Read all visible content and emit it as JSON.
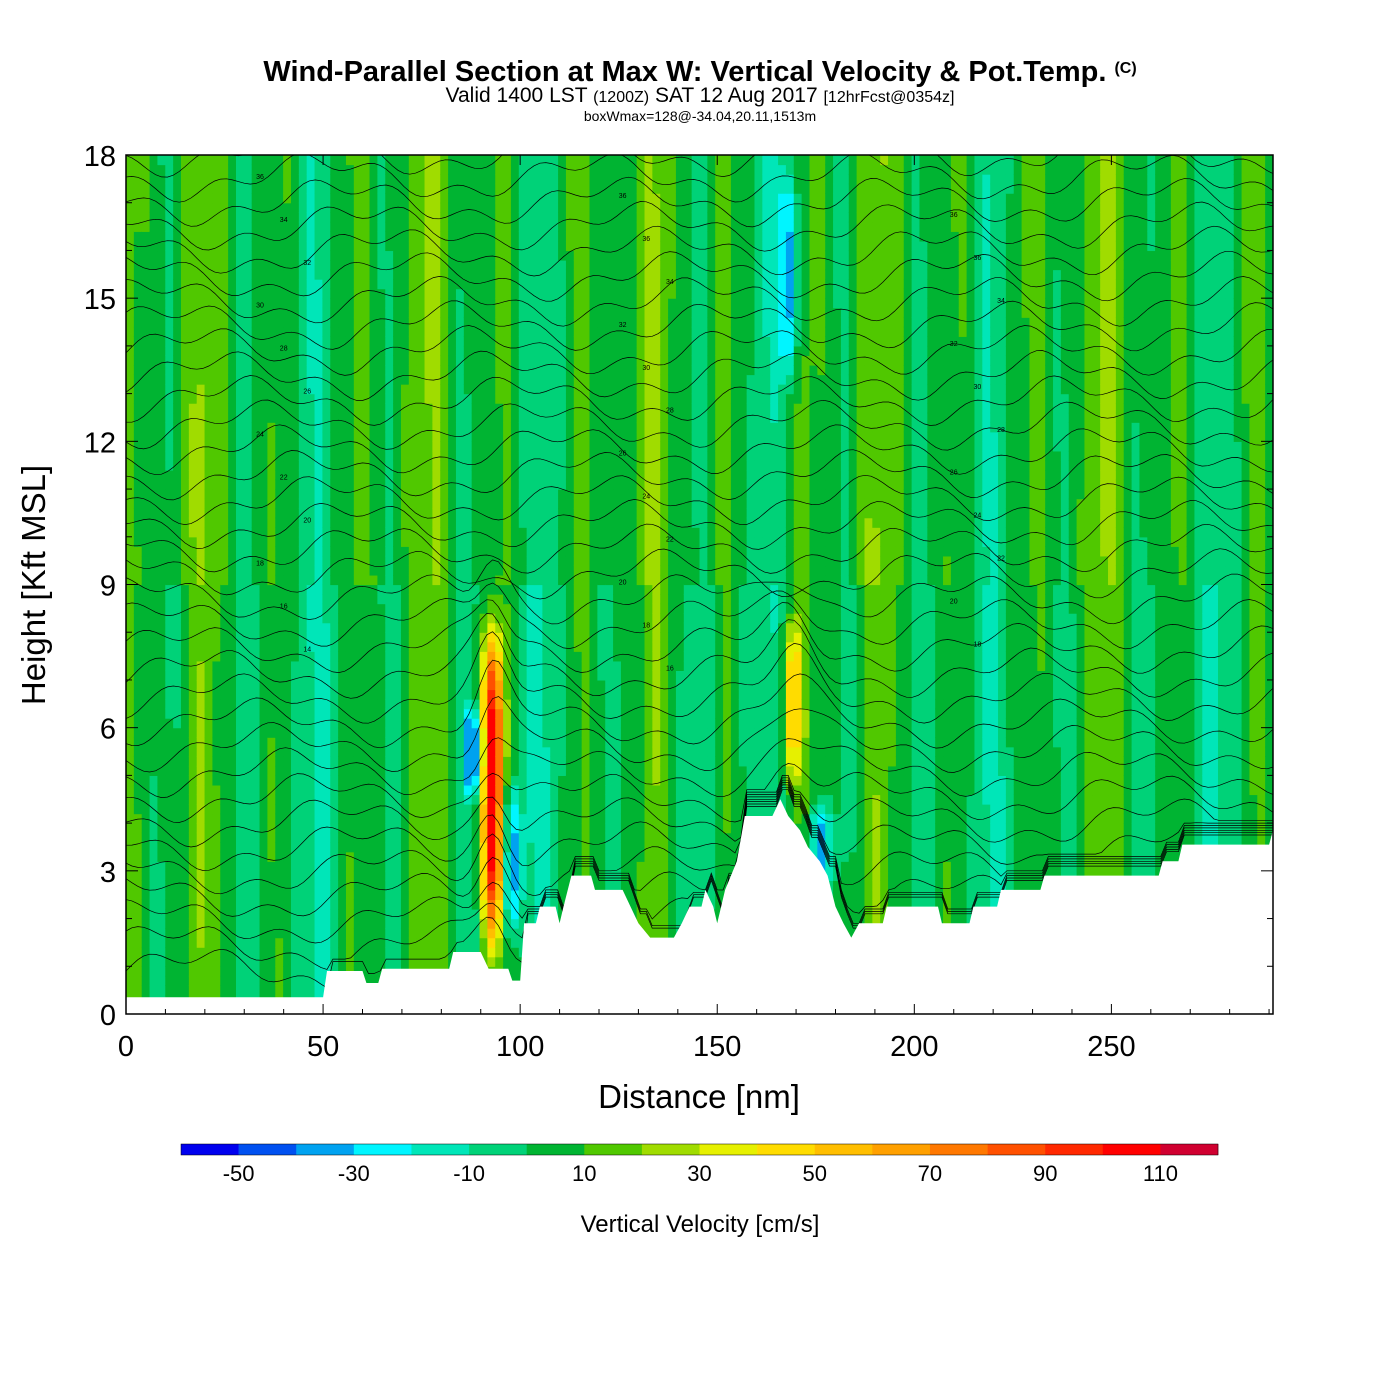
{
  "header": {
    "title": "Wind-Parallel Section at Max W: Vertical Velocity & Pot.Temp.",
    "copyright": "(C)",
    "subtitle_valid": "Valid 1400 LST",
    "subtitle_z": "(1200Z)",
    "subtitle_date": "SAT 12 Aug 2017",
    "subtitle_fcst": "[12hrFcst@0354z]",
    "box_info": "boxWmax=128@-34.04,20.11,1513m"
  },
  "colorbar": {
    "title": "Vertical Velocity [cm/s]",
    "bounds": [
      -60,
      -50,
      -40,
      -30,
      -20,
      -10,
      0,
      10,
      20,
      30,
      40,
      50,
      60,
      70,
      80,
      90,
      100,
      110,
      120
    ],
    "colors": [
      "#0000ee",
      "#0050f0",
      "#00a2f0",
      "#00f5ff",
      "#00e6b8",
      "#00d278",
      "#00b432",
      "#50c800",
      "#a0dc00",
      "#e6f000",
      "#ffdc00",
      "#ffbe00",
      "#ffa000",
      "#ff7800",
      "#ff5000",
      "#ff2800",
      "#ff0000",
      "#d00030"
    ],
    "labels": [
      "-50",
      "-30",
      "-10",
      "10",
      "30",
      "50",
      "70",
      "90",
      "110"
    ]
  },
  "chart_data": {
    "type": "heatmap",
    "title": "Wind-Parallel Section at Max W: Vertical Velocity & Pot.Temp.",
    "xlabel": "Distance [nm]",
    "ylabel": "Height [Kft MSL]",
    "xlim": [
      0,
      291
    ],
    "ylim": [
      0,
      18
    ],
    "xticks": [
      0,
      50,
      100,
      150,
      200,
      250
    ],
    "xtick_labels": [
      "0",
      "50",
      "100",
      "150",
      "200",
      "250"
    ],
    "yticks": [
      0,
      3,
      6,
      9,
      12,
      15,
      18
    ],
    "ytick_labels": [
      "0",
      "3",
      "6",
      "9",
      "12",
      "15",
      "18"
    ],
    "field": "Vertical Velocity [cm/s]",
    "contour_field": "Potential Temperature",
    "updrafts": [
      {
        "x": 93,
        "y_min": 1,
        "y_max": 8.5,
        "max_w": 110
      },
      {
        "x": 169,
        "y_min": 4.5,
        "y_max": 8.5,
        "max_w": 50
      }
    ],
    "downdrafts": [
      {
        "x": 98,
        "y_min": 1.5,
        "y_max": 5,
        "min_w": -30
      },
      {
        "x": 88,
        "y_min": 4.5,
        "y_max": 6.5,
        "min_w": -30
      },
      {
        "x": 176,
        "y_min": 2.5,
        "y_max": 4.5,
        "min_w": -30
      },
      {
        "x": 168,
        "y_min": 13,
        "y_max": 18,
        "min_w": -30
      }
    ],
    "terrain": [
      [
        0,
        0.35
      ],
      [
        50,
        0.35
      ],
      [
        51,
        0.9
      ],
      [
        60,
        0.9
      ],
      [
        61,
        0.65
      ],
      [
        64,
        0.65
      ],
      [
        65,
        0.95
      ],
      [
        82,
        0.95
      ],
      [
        83,
        1.3
      ],
      [
        90,
        1.3
      ],
      [
        92,
        0.95
      ],
      [
        97,
        0.95
      ],
      [
        98,
        0.7
      ],
      [
        100,
        0.7
      ],
      [
        101,
        1.9
      ],
      [
        104,
        1.9
      ],
      [
        105,
        2.25
      ],
      [
        109,
        2.25
      ],
      [
        110,
        1.9
      ],
      [
        111,
        2.25
      ],
      [
        113,
        2.9
      ],
      [
        118,
        2.9
      ],
      [
        119,
        2.6
      ],
      [
        126,
        2.6
      ],
      [
        128,
        2.25
      ],
      [
        130,
        1.9
      ],
      [
        133,
        1.6
      ],
      [
        139,
        1.6
      ],
      [
        141,
        1.9
      ],
      [
        143,
        2.25
      ],
      [
        146,
        2.25
      ],
      [
        147,
        2.6
      ],
      [
        149,
        2.25
      ],
      [
        150,
        1.9
      ],
      [
        152,
        2.6
      ],
      [
        155,
        3.2
      ],
      [
        157,
        4.15
      ],
      [
        164,
        4.15
      ],
      [
        166,
        4.5
      ],
      [
        168,
        4.15
      ],
      [
        171,
        3.85
      ],
      [
        173,
        3.5
      ],
      [
        176,
        3.2
      ],
      [
        178,
        2.9
      ],
      [
        180,
        2.25
      ],
      [
        182,
        1.9
      ],
      [
        184,
        1.6
      ],
      [
        186,
        1.9
      ],
      [
        192,
        1.9
      ],
      [
        193,
        2.25
      ],
      [
        206,
        2.25
      ],
      [
        207,
        1.9
      ],
      [
        214,
        1.9
      ],
      [
        215,
        2.25
      ],
      [
        221,
        2.25
      ],
      [
        222,
        2.6
      ],
      [
        232,
        2.6
      ],
      [
        233,
        2.9
      ],
      [
        262,
        2.9
      ],
      [
        263,
        3.2
      ],
      [
        267,
        3.2
      ],
      [
        268,
        3.55
      ],
      [
        290,
        3.55
      ],
      [
        291,
        3.85
      ]
    ],
    "theta_contour_labels": [
      "36",
      "34",
      "32",
      "30",
      "28",
      "26",
      "24",
      "22",
      "20",
      "18",
      "16",
      "14",
      "36",
      "36",
      "34",
      "32",
      "30",
      "28",
      "26",
      "24",
      "22",
      "20",
      "18",
      "16",
      "36",
      "36",
      "34",
      "32",
      "30",
      "28",
      "26",
      "24",
      "22",
      "20",
      "18"
    ]
  }
}
